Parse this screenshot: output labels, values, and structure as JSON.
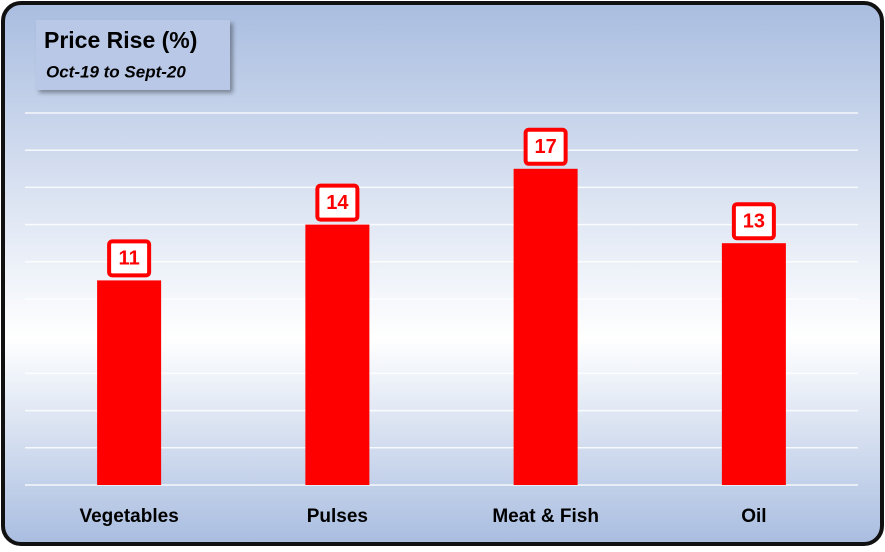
{
  "chart_data": {
    "type": "bar",
    "title": "Price Rise (%)",
    "subtitle": "Oct-19 to Sept-20",
    "categories": [
      "Vegetables",
      "Pulses",
      "Meat & Fish",
      "Oil"
    ],
    "values": [
      11,
      14,
      17,
      13
    ],
    "color": "#ff0000",
    "ylim": [
      0,
      20
    ],
    "yticks": [
      0,
      2,
      4,
      6,
      8,
      10,
      12,
      14,
      16,
      18,
      20
    ],
    "grid": true
  }
}
